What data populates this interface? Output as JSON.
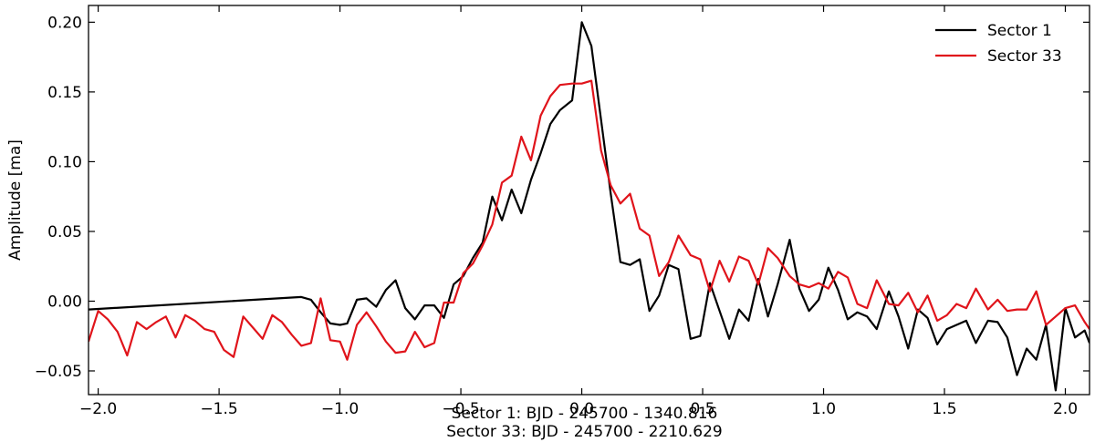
{
  "chart_data": {
    "type": "line",
    "title": "",
    "xlabel_lines": [
      "Sector 1: BJD - 245700 - 1340.816",
      "Sector 33: BJD - 245700 - 2210.629"
    ],
    "ylabel": "Amplitude [ma]",
    "xlim": [
      -2.04,
      2.1
    ],
    "ylim": [
      -0.067,
      0.212
    ],
    "xticks": [
      -2.0,
      -1.5,
      -1.0,
      -0.5,
      0.0,
      0.5,
      1.0,
      1.5,
      2.0
    ],
    "xtick_labels": [
      "−2.0",
      "−1.5",
      "−1.0",
      "−0.5",
      "0.0",
      "0.5",
      "1.0",
      "1.5",
      "2.0"
    ],
    "yticks": [
      -0.05,
      0.0,
      0.05,
      0.1,
      0.15,
      0.2
    ],
    "ytick_labels": [
      "−0.05",
      "0.00",
      "0.05",
      "0.10",
      "0.15",
      "0.20"
    ],
    "grid": false,
    "legend_position": "top-right",
    "series": [
      {
        "name": "Sector 1",
        "color": "#000000",
        "points": [
          [
            -2.04,
            -0.006
          ],
          [
            -1.16,
            0.003
          ],
          [
            -1.12,
            0.001
          ],
          [
            -1.08,
            -0.008
          ],
          [
            -1.04,
            -0.016
          ],
          [
            -1.0,
            -0.017
          ],
          [
            -0.97,
            -0.016
          ],
          [
            -0.93,
            0.001
          ],
          [
            -0.89,
            0.002
          ],
          [
            -0.85,
            -0.004
          ],
          [
            -0.81,
            0.008
          ],
          [
            -0.77,
            0.015
          ],
          [
            -0.73,
            -0.005
          ],
          [
            -0.69,
            -0.013
          ],
          [
            -0.65,
            -0.003
          ],
          [
            -0.61,
            -0.003
          ],
          [
            -0.57,
            -0.012
          ],
          [
            -0.53,
            0.012
          ],
          [
            -0.49,
            0.018
          ],
          [
            -0.45,
            0.031
          ],
          [
            -0.41,
            0.042
          ],
          [
            -0.37,
            0.075
          ],
          [
            -0.33,
            0.058
          ],
          [
            -0.29,
            0.08
          ],
          [
            -0.25,
            0.063
          ],
          [
            -0.21,
            0.087
          ],
          [
            -0.17,
            0.106
          ],
          [
            -0.13,
            0.127
          ],
          [
            -0.09,
            0.137
          ],
          [
            -0.04,
            0.144
          ],
          [
            0.0,
            0.2
          ],
          [
            0.04,
            0.183
          ],
          [
            0.08,
            0.13
          ],
          [
            0.12,
            0.077
          ],
          [
            0.16,
            0.028
          ],
          [
            0.2,
            0.026
          ],
          [
            0.24,
            0.03
          ],
          [
            0.28,
            -0.007
          ],
          [
            0.32,
            0.004
          ],
          [
            0.36,
            0.026
          ],
          [
            0.4,
            0.023
          ],
          [
            0.45,
            -0.027
          ],
          [
            0.49,
            -0.025
          ],
          [
            0.53,
            0.013
          ],
          [
            0.57,
            -0.007
          ],
          [
            0.61,
            -0.027
          ],
          [
            0.65,
            -0.006
          ],
          [
            0.69,
            -0.014
          ],
          [
            0.73,
            0.016
          ],
          [
            0.77,
            -0.011
          ],
          [
            0.81,
            0.012
          ],
          [
            0.86,
            0.044
          ],
          [
            0.9,
            0.009
          ],
          [
            0.94,
            -0.007
          ],
          [
            0.98,
            0.001
          ],
          [
            1.02,
            0.024
          ],
          [
            1.06,
            0.008
          ],
          [
            1.1,
            -0.013
          ],
          [
            1.14,
            -0.008
          ],
          [
            1.18,
            -0.011
          ],
          [
            1.22,
            -0.02
          ],
          [
            1.27,
            0.007
          ],
          [
            1.31,
            -0.011
          ],
          [
            1.35,
            -0.034
          ],
          [
            1.39,
            -0.006
          ],
          [
            1.43,
            -0.012
          ],
          [
            1.47,
            -0.031
          ],
          [
            1.51,
            -0.02
          ],
          [
            1.55,
            -0.017
          ],
          [
            1.59,
            -0.014
          ],
          [
            1.63,
            -0.03
          ],
          [
            1.68,
            -0.014
          ],
          [
            1.72,
            -0.015
          ],
          [
            1.76,
            -0.026
          ],
          [
            1.8,
            -0.053
          ],
          [
            1.84,
            -0.034
          ],
          [
            1.88,
            -0.042
          ],
          [
            1.92,
            -0.017
          ],
          [
            1.96,
            -0.064
          ],
          [
            2.0,
            -0.005
          ],
          [
            2.04,
            -0.026
          ],
          [
            2.08,
            -0.021
          ],
          [
            2.1,
            -0.03
          ]
        ]
      },
      {
        "name": "Sector 33",
        "color": "#e0141b",
        "points": [
          [
            -2.04,
            -0.029
          ],
          [
            -2.0,
            -0.007
          ],
          [
            -1.96,
            -0.013
          ],
          [
            -1.92,
            -0.022
          ],
          [
            -1.88,
            -0.039
          ],
          [
            -1.84,
            -0.015
          ],
          [
            -1.8,
            -0.02
          ],
          [
            -1.76,
            -0.015
          ],
          [
            -1.72,
            -0.011
          ],
          [
            -1.68,
            -0.026
          ],
          [
            -1.64,
            -0.01
          ],
          [
            -1.6,
            -0.014
          ],
          [
            -1.56,
            -0.02
          ],
          [
            -1.52,
            -0.022
          ],
          [
            -1.48,
            -0.035
          ],
          [
            -1.44,
            -0.04
          ],
          [
            -1.4,
            -0.011
          ],
          [
            -1.36,
            -0.019
          ],
          [
            -1.32,
            -0.027
          ],
          [
            -1.28,
            -0.01
          ],
          [
            -1.24,
            -0.015
          ],
          [
            -1.2,
            -0.024
          ],
          [
            -1.16,
            -0.032
          ],
          [
            -1.12,
            -0.03
          ],
          [
            -1.08,
            0.002
          ],
          [
            -1.04,
            -0.028
          ],
          [
            -1.0,
            -0.029
          ],
          [
            -0.97,
            -0.042
          ],
          [
            -0.93,
            -0.017
          ],
          [
            -0.89,
            -0.008
          ],
          [
            -0.85,
            -0.018
          ],
          [
            -0.81,
            -0.029
          ],
          [
            -0.77,
            -0.037
          ],
          [
            -0.73,
            -0.036
          ],
          [
            -0.69,
            -0.022
          ],
          [
            -0.65,
            -0.033
          ],
          [
            -0.61,
            -0.03
          ],
          [
            -0.57,
            -0.001
          ],
          [
            -0.53,
            -0.001
          ],
          [
            -0.49,
            0.02
          ],
          [
            -0.45,
            0.027
          ],
          [
            -0.41,
            0.04
          ],
          [
            -0.37,
            0.055
          ],
          [
            -0.33,
            0.085
          ],
          [
            -0.29,
            0.09
          ],
          [
            -0.25,
            0.118
          ],
          [
            -0.21,
            0.101
          ],
          [
            -0.17,
            0.133
          ],
          [
            -0.13,
            0.147
          ],
          [
            -0.09,
            0.155
          ],
          [
            -0.04,
            0.156
          ],
          [
            0.0,
            0.156
          ],
          [
            0.04,
            0.158
          ],
          [
            0.08,
            0.108
          ],
          [
            0.12,
            0.083
          ],
          [
            0.16,
            0.07
          ],
          [
            0.2,
            0.077
          ],
          [
            0.24,
            0.052
          ],
          [
            0.28,
            0.047
          ],
          [
            0.32,
            0.018
          ],
          [
            0.36,
            0.028
          ],
          [
            0.4,
            0.047
          ],
          [
            0.45,
            0.033
          ],
          [
            0.49,
            0.03
          ],
          [
            0.53,
            0.007
          ],
          [
            0.57,
            0.029
          ],
          [
            0.61,
            0.014
          ],
          [
            0.65,
            0.032
          ],
          [
            0.69,
            0.029
          ],
          [
            0.73,
            0.012
          ],
          [
            0.77,
            0.038
          ],
          [
            0.81,
            0.031
          ],
          [
            0.86,
            0.018
          ],
          [
            0.9,
            0.012
          ],
          [
            0.94,
            0.01
          ],
          [
            0.98,
            0.013
          ],
          [
            1.02,
            0.009
          ],
          [
            1.06,
            0.021
          ],
          [
            1.1,
            0.017
          ],
          [
            1.14,
            -0.002
          ],
          [
            1.18,
            -0.005
          ],
          [
            1.22,
            0.015
          ],
          [
            1.27,
            -0.002
          ],
          [
            1.31,
            -0.003
          ],
          [
            1.35,
            0.006
          ],
          [
            1.39,
            -0.008
          ],
          [
            1.43,
            0.004
          ],
          [
            1.47,
            -0.014
          ],
          [
            1.51,
            -0.01
          ],
          [
            1.55,
            -0.002
          ],
          [
            1.59,
            -0.005
          ],
          [
            1.63,
            0.009
          ],
          [
            1.68,
            -0.006
          ],
          [
            1.72,
            0.001
          ],
          [
            1.76,
            -0.007
          ],
          [
            1.8,
            -0.006
          ],
          [
            1.84,
            -0.006
          ],
          [
            1.88,
            0.007
          ],
          [
            1.92,
            -0.017
          ],
          [
            1.96,
            -0.011
          ],
          [
            2.0,
            -0.005
          ],
          [
            2.04,
            -0.003
          ],
          [
            2.08,
            -0.015
          ],
          [
            2.1,
            -0.02
          ]
        ]
      }
    ]
  }
}
